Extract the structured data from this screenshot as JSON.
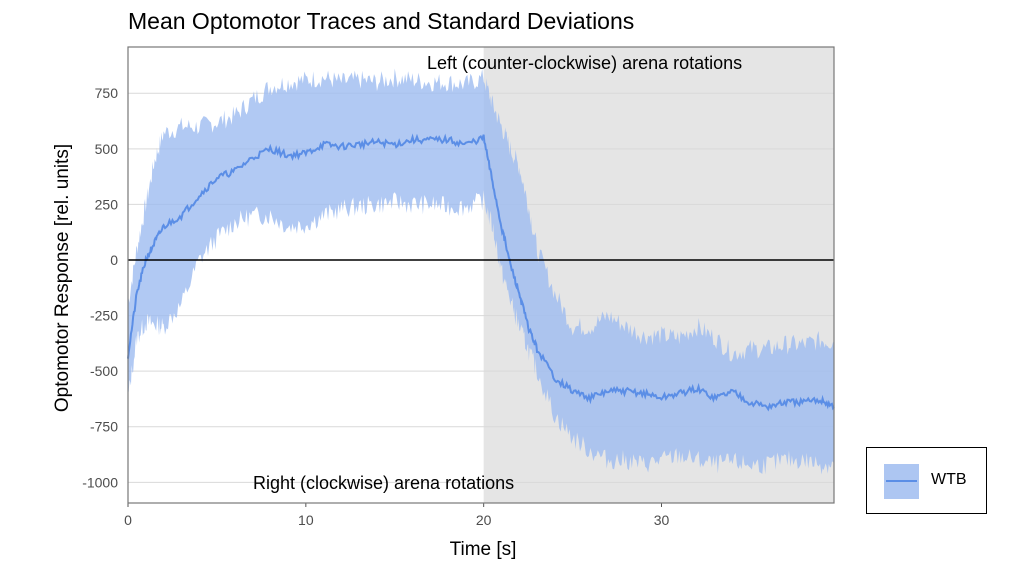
{
  "chart_data": {
    "type": "area",
    "title": "Mean Optomotor Traces and Standard Deviations",
    "xlabel": "Time [s]",
    "ylabel": "Optomotor Response [rel. units]",
    "xlim": [
      0,
      39.7
    ],
    "ylim": [
      -1093,
      958
    ],
    "xticks": [
      0,
      10,
      20,
      30
    ],
    "yticks": [
      750,
      500,
      250,
      0,
      -250,
      -500,
      -750,
      -1000
    ],
    "grid": true,
    "legend_position": "right",
    "shaded_region": {
      "x": [
        20,
        39.7
      ],
      "color": "#e5e5e5"
    },
    "annotations": [
      {
        "text": "Left (counter-clockwise) arena rotations",
        "x": 30,
        "y": 880
      },
      {
        "text": "Right (clockwise) arena rotations",
        "x": 24,
        "y": -990
      }
    ],
    "series": [
      {
        "name": "WTB",
        "line_color": "#5b8ee6",
        "fill_color": "#9dbcf0",
        "t": [
          0,
          0.5,
          1,
          1.5,
          2,
          3,
          4,
          5,
          6,
          7,
          8,
          9,
          10,
          11,
          12,
          13,
          14,
          15,
          16,
          17,
          18,
          19,
          20,
          20.5,
          21,
          21.5,
          22,
          22.5,
          23,
          24,
          25,
          26,
          27,
          28,
          29,
          30,
          31,
          32,
          33,
          34,
          35,
          36,
          37,
          38,
          39,
          39.7
        ],
        "mean": [
          -430,
          -150,
          0,
          80,
          150,
          200,
          290,
          370,
          400,
          460,
          500,
          470,
          480,
          520,
          510,
          520,
          530,
          520,
          540,
          540,
          540,
          520,
          550,
          350,
          150,
          -20,
          -150,
          -300,
          -400,
          -530,
          -590,
          -620,
          -590,
          -590,
          -600,
          -620,
          -600,
          -580,
          -620,
          -590,
          -640,
          -660,
          -640,
          -640,
          -630,
          -660
        ],
        "upper": [
          -200,
          50,
          250,
          450,
          570,
          600,
          600,
          620,
          650,
          720,
          780,
          800,
          810,
          820,
          800,
          810,
          800,
          820,
          810,
          800,
          800,
          790,
          820,
          700,
          600,
          500,
          420,
          250,
          50,
          -150,
          -300,
          -300,
          -250,
          -300,
          -340,
          -340,
          -350,
          -300,
          -350,
          -420,
          -400,
          -400,
          -380,
          -380,
          -360,
          -370
        ],
        "lower": [
          -620,
          -350,
          -280,
          -290,
          -300,
          -200,
          0,
          100,
          170,
          200,
          200,
          150,
          160,
          200,
          230,
          240,
          250,
          260,
          250,
          250,
          240,
          240,
          270,
          150,
          -50,
          -180,
          -300,
          -400,
          -500,
          -700,
          -800,
          -860,
          -900,
          -900,
          -920,
          -900,
          -880,
          -900,
          -920,
          -910,
          -920,
          -920,
          -900,
          -900,
          -920,
          -920
        ]
      }
    ]
  }
}
